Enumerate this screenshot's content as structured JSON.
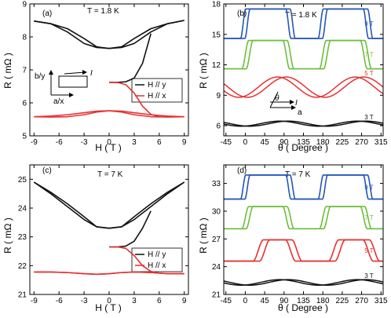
{
  "figure_panels": [
    "(a)",
    "(b)",
    "(c)",
    "(d)"
  ],
  "colors": {
    "black": "#111111",
    "red": "#e83030",
    "green": "#6cbf3c",
    "blue": "#2356b8"
  },
  "chart_data": [
    {
      "panel": "(a)",
      "type": "line",
      "annotation": "T = 1.8 K",
      "xlabel": "H ( T )",
      "ylabel": "R ( mΩ )",
      "xlim": [
        -9.5,
        9.5
      ],
      "ylim": [
        5,
        9
      ],
      "xticks": [
        "-9",
        "-6",
        "-3",
        "0",
        "3",
        "6",
        "9"
      ],
      "yticks": [
        "5",
        "6",
        "7",
        "8",
        "9"
      ],
      "legend": [
        "H // y",
        "H // x"
      ],
      "inset_labels": [
        "b/y",
        "a/x",
        "I"
      ],
      "series": [
        {
          "name": "H // y",
          "color": "black",
          "kind": "hysteresis",
          "up": {
            "x": [
              -9,
              -7,
              -5,
              -3,
              -1.5,
              0,
              1.5,
              3,
              5,
              7,
              9
            ],
            "y": [
              8.48,
              8.4,
              8.25,
              7.95,
              7.7,
              7.65,
              7.68,
              7.8,
              8.15,
              8.4,
              8.5
            ]
          },
          "down": {
            "x": [
              9,
              7,
              5,
              3,
              1.5,
              0,
              -1.5,
              -3,
              -5,
              -7,
              -9
            ],
            "y": [
              8.5,
              8.4,
              8.25,
              7.95,
              7.7,
              7.65,
              7.68,
              7.8,
              8.15,
              8.4,
              8.48
            ]
          },
          "virgin": {
            "x": [
              0,
              1,
              2,
              3,
              4,
              5
            ],
            "y": [
              6.62,
              6.62,
              6.64,
              6.75,
              7.2,
              8.1
            ]
          }
        },
        {
          "name": "H // x",
          "color": "red",
          "kind": "hysteresis",
          "up": {
            "x": [
              -9,
              -7,
              -5,
              -3,
              -1.5,
              0,
              1.5,
              3,
              5,
              7,
              9
            ],
            "y": [
              5.58,
              5.6,
              5.64,
              5.7,
              5.75,
              5.76,
              5.72,
              5.64,
              5.58,
              5.57,
              5.58
            ]
          },
          "down": {
            "x": [
              9,
              7,
              5,
              3,
              1.5,
              0,
              -1.5,
              -3,
              -5,
              -7,
              -9
            ],
            "y": [
              5.58,
              5.6,
              5.64,
              5.7,
              5.75,
              5.76,
              5.72,
              5.64,
              5.58,
              5.57,
              5.58
            ]
          },
          "virgin": {
            "x": [
              0,
              1,
              2,
              3,
              4,
              5,
              6
            ],
            "y": [
              6.62,
              6.62,
              6.55,
              6.3,
              5.9,
              5.65,
              5.58
            ]
          }
        }
      ]
    },
    {
      "panel": "(b)",
      "type": "line",
      "annotation": "T = 1.8 K",
      "xlabel": "θ ( Degree )",
      "ylabel": "R ( mΩ )",
      "xlim": [
        -50,
        320
      ],
      "ylim": [
        5,
        18
      ],
      "xticks": [
        "-45",
        "0",
        "45",
        "90",
        "135",
        "180",
        "225",
        "270",
        "315"
      ],
      "yticks": [
        "6",
        "9",
        "12",
        "15",
        "18"
      ],
      "inset_labels": [
        "θ",
        "I",
        "a"
      ],
      "series": [
        {
          "name": "9 T",
          "color": "blue",
          "kind": "two-branch-plateau",
          "low": 14.6,
          "high": 17.5,
          "up_edges": [
            -5,
            110,
            175,
            290
          ],
          "down_edges": [
            5,
            100,
            185,
            280
          ],
          "width": 6
        },
        {
          "name": "7 T",
          "color": "green",
          "kind": "two-branch-plateau",
          "low": 11.6,
          "high": 14.4,
          "up_edges": [
            0,
            105,
            180,
            285
          ],
          "down_edges": [
            10,
            95,
            190,
            275
          ],
          "width": 8
        },
        {
          "name": "5 T",
          "color": "red",
          "kind": "two-branch-sine",
          "mean": 9.8,
          "amp": 1.0,
          "period": 180,
          "shifts": [
            75,
            95
          ]
        },
        {
          "name": "3 T",
          "color": "black",
          "kind": "two-branch-sine",
          "mean": 6.2,
          "amp": 0.25,
          "period": 180,
          "shifts": [
            80,
            100
          ]
        }
      ]
    },
    {
      "panel": "(c)",
      "type": "line",
      "annotation": "T = 7 K",
      "xlabel": "H ( T )",
      "ylabel": "R ( mΩ )",
      "xlim": [
        -9.5,
        9.5
      ],
      "ylim": [
        21,
        25.5
      ],
      "xticks": [
        "-9",
        "-6",
        "-3",
        "0",
        "3",
        "6",
        "9"
      ],
      "yticks": [
        "21",
        "22",
        "23",
        "24",
        "25"
      ],
      "legend": [
        "H // y",
        "H // x"
      ],
      "series": [
        {
          "name": "H // y",
          "color": "black",
          "kind": "hysteresis",
          "up": {
            "x": [
              -9,
              -7,
              -5,
              -3,
              -1.5,
              0,
              1.5,
              3,
              5,
              7,
              9
            ],
            "y": [
              24.9,
              24.55,
              24.15,
              23.7,
              23.35,
              23.3,
              23.35,
              23.6,
              24.05,
              24.5,
              24.9
            ]
          },
          "down": {
            "x": [
              9,
              7,
              5,
              3,
              1.5,
              0,
              -1.5,
              -3,
              -5,
              -7,
              -9
            ],
            "y": [
              24.9,
              24.55,
              24.15,
              23.7,
              23.35,
              23.3,
              23.35,
              23.6,
              24.05,
              24.5,
              24.9
            ]
          },
          "virgin": {
            "x": [
              0,
              1,
              2,
              3,
              4,
              5
            ],
            "y": [
              22.65,
              22.65,
              22.68,
              22.85,
              23.3,
              23.9
            ]
          }
        },
        {
          "name": "H // x",
          "color": "red",
          "kind": "hysteresis",
          "up": {
            "x": [
              -9,
              -7,
              -5,
              -3,
              -1.5,
              0,
              1.5,
              3,
              5,
              7,
              9
            ],
            "y": [
              21.78,
              21.78,
              21.76,
              21.72,
              21.7,
              21.72,
              21.76,
              21.78,
              21.76,
              21.72,
              21.72
            ]
          },
          "down": {
            "x": [
              9,
              7,
              5,
              3,
              1.5,
              0,
              -1.5,
              -3,
              -5,
              -7,
              -9
            ],
            "y": [
              21.72,
              21.72,
              21.76,
              21.78,
              21.76,
              21.72,
              21.7,
              21.72,
              21.76,
              21.78,
              21.78
            ]
          },
          "virgin": {
            "x": [
              0,
              1,
              2,
              3,
              4,
              5,
              6
            ],
            "y": [
              22.65,
              22.65,
              22.6,
              22.35,
              22.0,
              21.8,
              21.74
            ]
          }
        }
      ]
    },
    {
      "panel": "(d)",
      "type": "line",
      "annotation": "T = 7 K",
      "xlabel": "θ ( Degree )",
      "ylabel": "R ( mΩ )",
      "xlim": [
        -50,
        320
      ],
      "ylim": [
        21,
        35
      ],
      "xticks": [
        "-45",
        "0",
        "45",
        "90",
        "135",
        "180",
        "225",
        "270",
        "315"
      ],
      "yticks": [
        "21",
        "24",
        "27",
        "30",
        "33"
      ],
      "series": [
        {
          "name": "9 T",
          "color": "blue",
          "kind": "two-branch-plateau",
          "low": 31.3,
          "high": 33.9,
          "up_edges": [
            -5,
            110,
            175,
            290
          ],
          "down_edges": [
            5,
            100,
            185,
            280
          ],
          "width": 6
        },
        {
          "name": "7 T",
          "color": "green",
          "kind": "two-branch-plateau",
          "low": 28.1,
          "high": 30.5,
          "up_edges": [
            0,
            105,
            180,
            285
          ],
          "down_edges": [
            10,
            95,
            190,
            275
          ],
          "width": 8
        },
        {
          "name": "5 T",
          "color": "red",
          "kind": "two-branch-plateau",
          "low": 24.6,
          "high": 26.9,
          "up_edges": [
            30,
            120,
            205,
            300
          ],
          "down_edges": [
            45,
            105,
            220,
            285
          ],
          "width": 12
        },
        {
          "name": "3 T",
          "color": "black",
          "kind": "two-branch-sine",
          "mean": 22.3,
          "amp": 0.3,
          "period": 180,
          "shifts": [
            80,
            100
          ]
        }
      ]
    }
  ]
}
